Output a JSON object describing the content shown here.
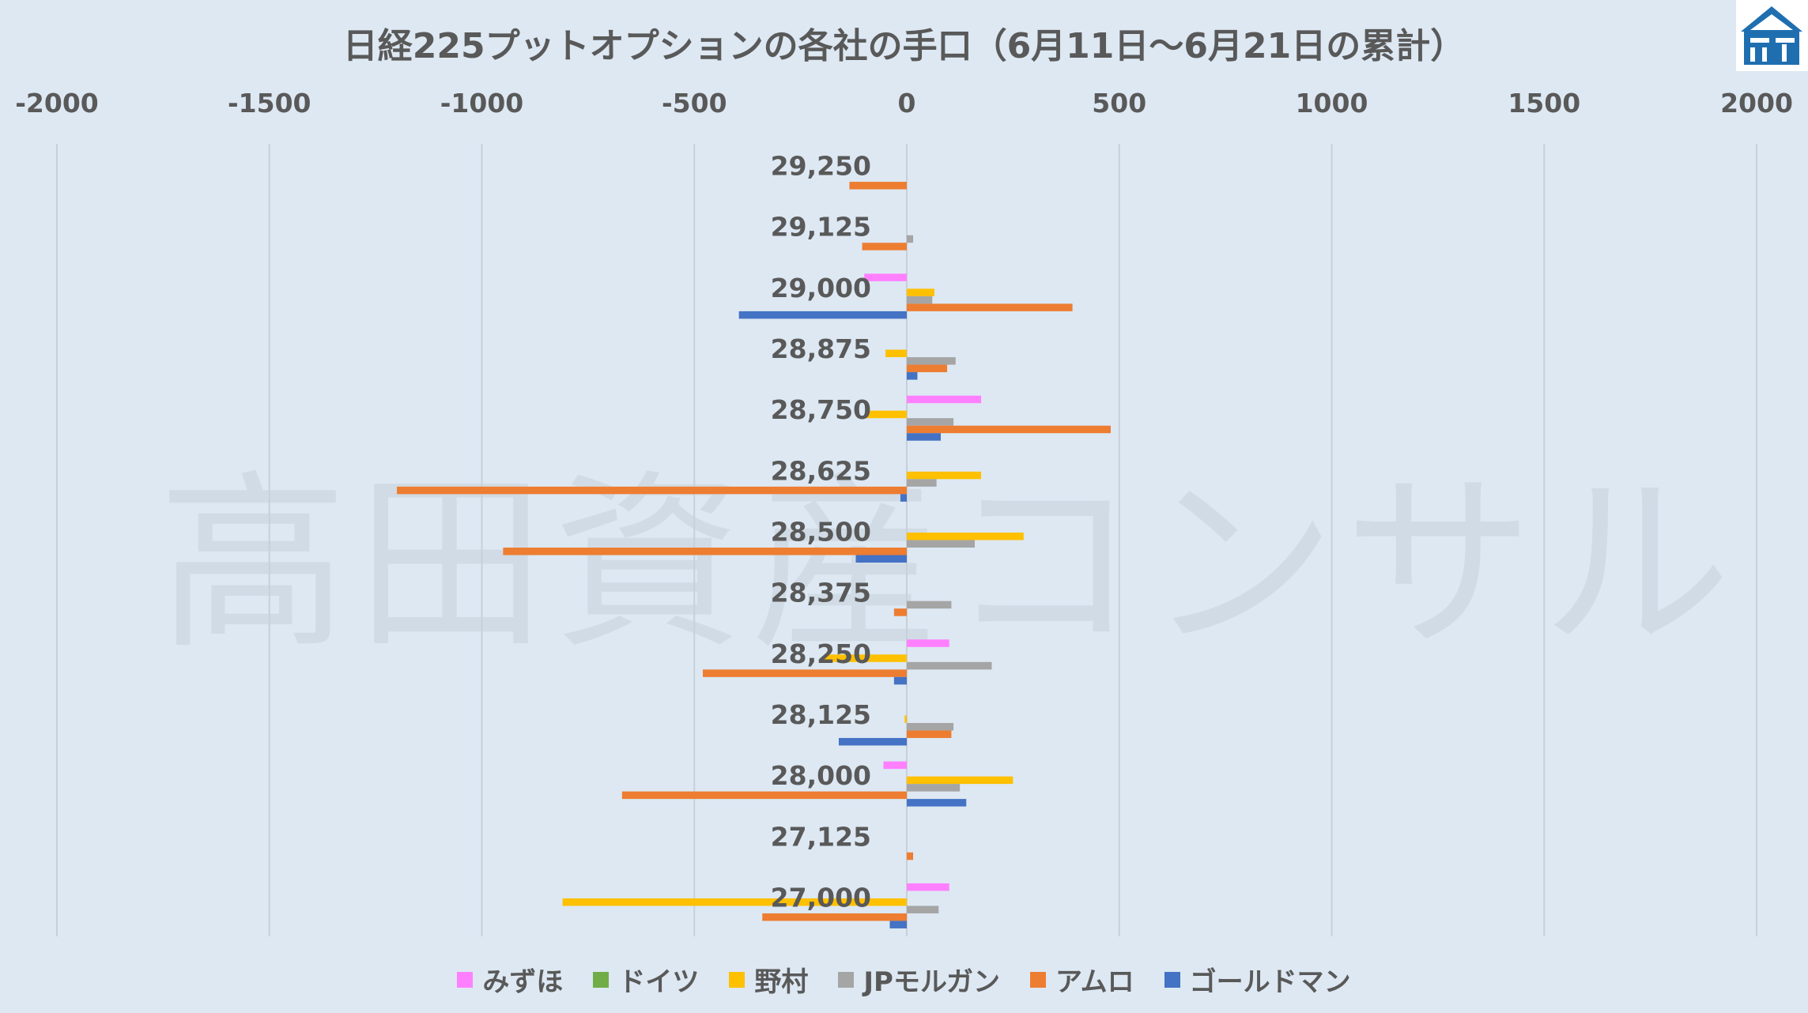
{
  "title": "日経225プットオプションの各社の手口（6月11日～6月21日の累計）",
  "watermark": "高田資産コンサル",
  "logo": {
    "icon": "building-logo-icon",
    "color": "#1f6fb0"
  },
  "chart_data": {
    "type": "bar",
    "orientation": "horizontal",
    "title": "日経225プットオプションの各社の手口（6月11日～6月21日の累計）",
    "xlim": [
      -2000,
      2000
    ],
    "xticks": [
      -2000,
      -1500,
      -1000,
      -500,
      0,
      500,
      1000,
      1500,
      2000
    ],
    "x_axis_position": "top",
    "grid": true,
    "legend_position": "bottom",
    "categories": [
      "29,250",
      "29,125",
      "29,000",
      "28,875",
      "28,750",
      "28,625",
      "28,500",
      "28,375",
      "28,250",
      "28,125",
      "28,000",
      "27,125",
      "27,000"
    ],
    "series": [
      {
        "name": "みずほ",
        "color": "#ff80ff",
        "values": [
          0,
          0,
          -100,
          0,
          175,
          0,
          0,
          0,
          100,
          0,
          -55,
          0,
          100
        ]
      },
      {
        "name": "ドイツ",
        "color": "#70ad47",
        "values": [
          0,
          0,
          0,
          0,
          0,
          0,
          0,
          0,
          0,
          0,
          0,
          0,
          0
        ]
      },
      {
        "name": "野村",
        "color": "#ffc000",
        "values": [
          0,
          0,
          65,
          -50,
          -95,
          175,
          275,
          0,
          -195,
          -5,
          250,
          0,
          -810
        ]
      },
      {
        "name": "JPモルガン",
        "color": "#a5a5a5",
        "values": [
          0,
          15,
          60,
          115,
          110,
          70,
          160,
          105,
          200,
          110,
          125,
          0,
          75
        ]
      },
      {
        "name": "アムロ",
        "color": "#ed7d31",
        "values": [
          -135,
          -105,
          390,
          95,
          480,
          -1200,
          -950,
          -30,
          -480,
          105,
          -670,
          15,
          -340
        ]
      },
      {
        "name": "ゴールドマン",
        "color": "#4472c4",
        "values": [
          0,
          0,
          -395,
          25,
          80,
          -15,
          -120,
          0,
          -30,
          -160,
          140,
          0,
          -40
        ]
      }
    ]
  }
}
